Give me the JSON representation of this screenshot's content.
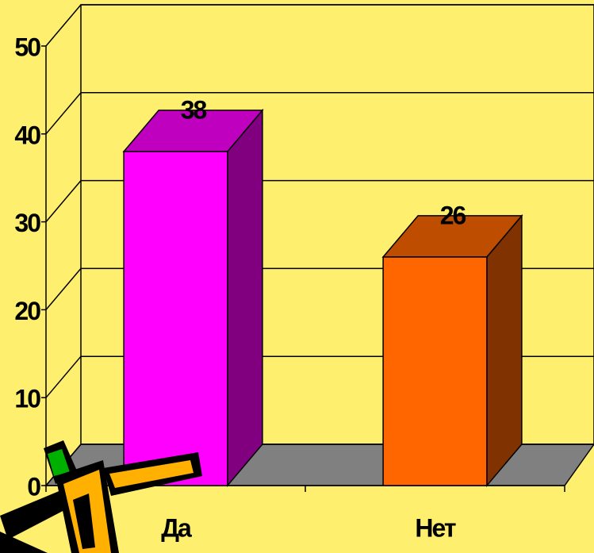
{
  "chart_data": {
    "type": "bar3d",
    "categories": [
      "Да",
      "Нет"
    ],
    "values": [
      38,
      26
    ],
    "colors": [
      "#ff00ff",
      "#ff6600"
    ],
    "ylim": [
      0,
      50
    ],
    "yticks": [
      0,
      10,
      20,
      30,
      40,
      50
    ],
    "grid": true
  }
}
